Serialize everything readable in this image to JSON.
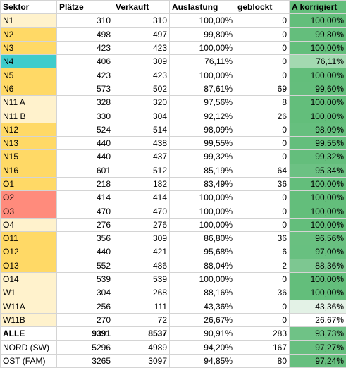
{
  "table": {
    "header": [
      "Sektor",
      "Plätze",
      "Verkauft",
      "Auslastung",
      "geblockt",
      "A korrigiert"
    ],
    "header_korr_color": "#63be7b",
    "rows": [
      {
        "cells": [
          "N1",
          "310",
          "310",
          "100,00%",
          "0",
          "100,00%"
        ],
        "sektor_color": "#fff2cc",
        "korr_color": "#63be7b"
      },
      {
        "cells": [
          "N2",
          "498",
          "497",
          "99,80%",
          "0",
          "99,80%"
        ],
        "sektor_color": "#ffd966",
        "korr_color": "#64be7c"
      },
      {
        "cells": [
          "N3",
          "423",
          "423",
          "100,00%",
          "0",
          "100,00%"
        ],
        "sektor_color": "#ffd966",
        "korr_color": "#63be7b"
      },
      {
        "cells": [
          "N4",
          "406",
          "309",
          "76,11%",
          "0",
          "76,11%"
        ],
        "sektor_color": "#3fcccc",
        "korr_color": "#a3d9b0"
      },
      {
        "cells": [
          "N5",
          "423",
          "423",
          "100,00%",
          "0",
          "100,00%"
        ],
        "sektor_color": "#ffd966",
        "korr_color": "#63be7b"
      },
      {
        "cells": [
          "N6",
          "573",
          "502",
          "87,61%",
          "69",
          "99,60%"
        ],
        "sektor_color": "#ffd966",
        "korr_color": "#64be7c"
      },
      {
        "cells": [
          "N11 A",
          "328",
          "320",
          "97,56%",
          "8",
          "100,00%"
        ],
        "sektor_color": "#fff2cc",
        "korr_color": "#63be7b"
      },
      {
        "cells": [
          "N11 B",
          "330",
          "304",
          "92,12%",
          "26",
          "100,00%"
        ],
        "sektor_color": "#fff2cc",
        "korr_color": "#63be7b"
      },
      {
        "cells": [
          "N12",
          "524",
          "514",
          "98,09%",
          "0",
          "98,09%"
        ],
        "sektor_color": "#ffd966",
        "korr_color": "#66bf7e"
      },
      {
        "cells": [
          "N13",
          "440",
          "438",
          "99,55%",
          "0",
          "99,55%"
        ],
        "sektor_color": "#ffd966",
        "korr_color": "#64be7c"
      },
      {
        "cells": [
          "N15",
          "440",
          "437",
          "99,32%",
          "0",
          "99,32%"
        ],
        "sektor_color": "#ffd966",
        "korr_color": "#64be7c"
      },
      {
        "cells": [
          "N16",
          "601",
          "512",
          "85,19%",
          "64",
          "95,34%"
        ],
        "sektor_color": "#ffd966",
        "korr_color": "#6cc183"
      },
      {
        "cells": [
          "O1",
          "218",
          "182",
          "83,49%",
          "36",
          "100,00%"
        ],
        "sektor_color": "#ffd966",
        "korr_color": "#63be7b"
      },
      {
        "cells": [
          "O2",
          "414",
          "414",
          "100,00%",
          "0",
          "100,00%"
        ],
        "sektor_color": "#ff8b7c",
        "korr_color": "#63be7b"
      },
      {
        "cells": [
          "O3",
          "470",
          "470",
          "100,00%",
          "0",
          "100,00%"
        ],
        "sektor_color": "#ff8b7c",
        "korr_color": "#63be7b"
      },
      {
        "cells": [
          "O4",
          "276",
          "276",
          "100,00%",
          "0",
          "100,00%"
        ],
        "sektor_color": "#fff2cc",
        "korr_color": "#63be7b"
      },
      {
        "cells": [
          "O11",
          "356",
          "309",
          "86,80%",
          "36",
          "96,56%"
        ],
        "sektor_color": "#ffd966",
        "korr_color": "#69c080"
      },
      {
        "cells": [
          "O12",
          "440",
          "421",
          "95,68%",
          "6",
          "97,00%"
        ],
        "sektor_color": "#ffd966",
        "korr_color": "#68c080"
      },
      {
        "cells": [
          "O13",
          "552",
          "486",
          "88,04%",
          "2",
          "88,36%"
        ],
        "sektor_color": "#ffd966",
        "korr_color": "#7dc791"
      },
      {
        "cells": [
          "O14",
          "539",
          "539",
          "100,00%",
          "0",
          "100,00%"
        ],
        "sektor_color": "#fff2cc",
        "korr_color": "#63be7b"
      },
      {
        "cells": [
          "W1",
          "304",
          "268",
          "88,16%",
          "36",
          "100,00%"
        ],
        "sektor_color": "#fff2cc",
        "korr_color": "#63be7b"
      },
      {
        "cells": [
          "W11A",
          "256",
          "111",
          "43,36%",
          "0",
          "43,36%"
        ],
        "sektor_color": "#fff2cc",
        "korr_color": "#e3f2e6"
      },
      {
        "cells": [
          "W11B",
          "270",
          "72",
          "26,67%",
          "0",
          "26,67%"
        ],
        "sektor_color": "#fff2cc",
        "korr_color": "#ffffff"
      },
      {
        "cells": [
          "ALLE",
          "9391",
          "8537",
          "90,91%",
          "283",
          "93,73%"
        ],
        "sektor_color": "#ffffff",
        "korr_color": "#6fc286",
        "bold": true
      },
      {
        "cells": [
          "NORD (SW)",
          "5296",
          "4989",
          "94,20%",
          "167",
          "97,27%"
        ],
        "sektor_color": "#ffffff",
        "korr_color": "#67bf7f"
      },
      {
        "cells": [
          "OST (FAM)",
          "3265",
          "3097",
          "94,85%",
          "80",
          "97,24%"
        ],
        "sektor_color": "#ffffff",
        "korr_color": "#67bf7f"
      }
    ]
  }
}
